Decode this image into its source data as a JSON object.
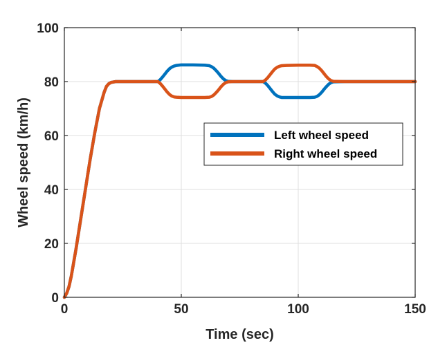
{
  "chart_data": {
    "type": "line",
    "title": "",
    "xlabel": "Time (sec)",
    "ylabel": "Wheel speed (km/h)",
    "xlim": [
      0,
      150
    ],
    "ylim": [
      0,
      100
    ],
    "xticks": [
      0,
      50,
      100,
      150
    ],
    "yticks": [
      0,
      20,
      40,
      60,
      80,
      100
    ],
    "grid": true,
    "legend_position": "inside-right",
    "series": [
      {
        "name": "Left wheel speed",
        "color": "#0072BD",
        "x": [
          0,
          1,
          2,
          3,
          5,
          7,
          9,
          11,
          13,
          15,
          17,
          18,
          19,
          20,
          22,
          25,
          30,
          40,
          41,
          42,
          43,
          44,
          45,
          46,
          47,
          48,
          50,
          55,
          60,
          62,
          63,
          64,
          65,
          66,
          67,
          68,
          69,
          70,
          72,
          75,
          80,
          85,
          86,
          87,
          88,
          89,
          90,
          91,
          92,
          93,
          95,
          100,
          105,
          107,
          108,
          109,
          110,
          111,
          112,
          113,
          114,
          115,
          120,
          130,
          140,
          150
        ],
        "y": [
          0,
          1.5,
          4,
          8,
          18,
          29,
          40,
          51,
          61,
          70,
          76,
          78.2,
          79.2,
          79.7,
          80,
          80,
          80,
          80,
          80.7,
          81.7,
          82.8,
          83.9,
          84.8,
          85.4,
          85.8,
          86,
          86.2,
          86.2,
          86.1,
          85.9,
          85.5,
          84.9,
          84,
          83,
          81.9,
          81,
          80.4,
          80.1,
          80,
          80,
          80,
          80,
          79.4,
          78.5,
          77.4,
          76.3,
          75.3,
          74.7,
          74.3,
          74.1,
          74.1,
          74.1,
          74.1,
          74.2,
          74.5,
          75.1,
          76,
          77.1,
          78.1,
          79,
          79.6,
          79.9,
          80,
          80,
          80,
          80
        ]
      },
      {
        "name": "Right wheel speed",
        "color": "#D95319",
        "x": [
          0,
          1,
          2,
          3,
          5,
          7,
          9,
          11,
          13,
          15,
          17,
          18,
          19,
          20,
          22,
          25,
          30,
          40,
          41,
          42,
          43,
          44,
          45,
          46,
          47,
          48,
          50,
          55,
          60,
          62,
          63,
          64,
          65,
          66,
          67,
          68,
          69,
          70,
          72,
          75,
          80,
          85,
          86,
          87,
          88,
          89,
          90,
          91,
          92,
          93,
          95,
          100,
          105,
          107,
          108,
          109,
          110,
          111,
          112,
          113,
          114,
          115,
          120,
          130,
          140,
          150
        ],
        "y": [
          0,
          1.5,
          4,
          8,
          18,
          29,
          40,
          51,
          61,
          70,
          76,
          78.2,
          79.2,
          79.7,
          80,
          80,
          80,
          80,
          79.3,
          78.3,
          77.2,
          76.1,
          75.2,
          74.6,
          74.3,
          74.2,
          74.1,
          74.1,
          74.1,
          74.2,
          74.5,
          75.1,
          76,
          77,
          78.1,
          79,
          79.6,
          79.9,
          80,
          80,
          80,
          80,
          80.6,
          81.5,
          82.6,
          83.7,
          84.7,
          85.3,
          85.7,
          85.9,
          86,
          86.1,
          86.1,
          86,
          85.6,
          85,
          84.1,
          83,
          81.9,
          81,
          80.4,
          80.1,
          80,
          80,
          80,
          80
        ]
      }
    ]
  }
}
